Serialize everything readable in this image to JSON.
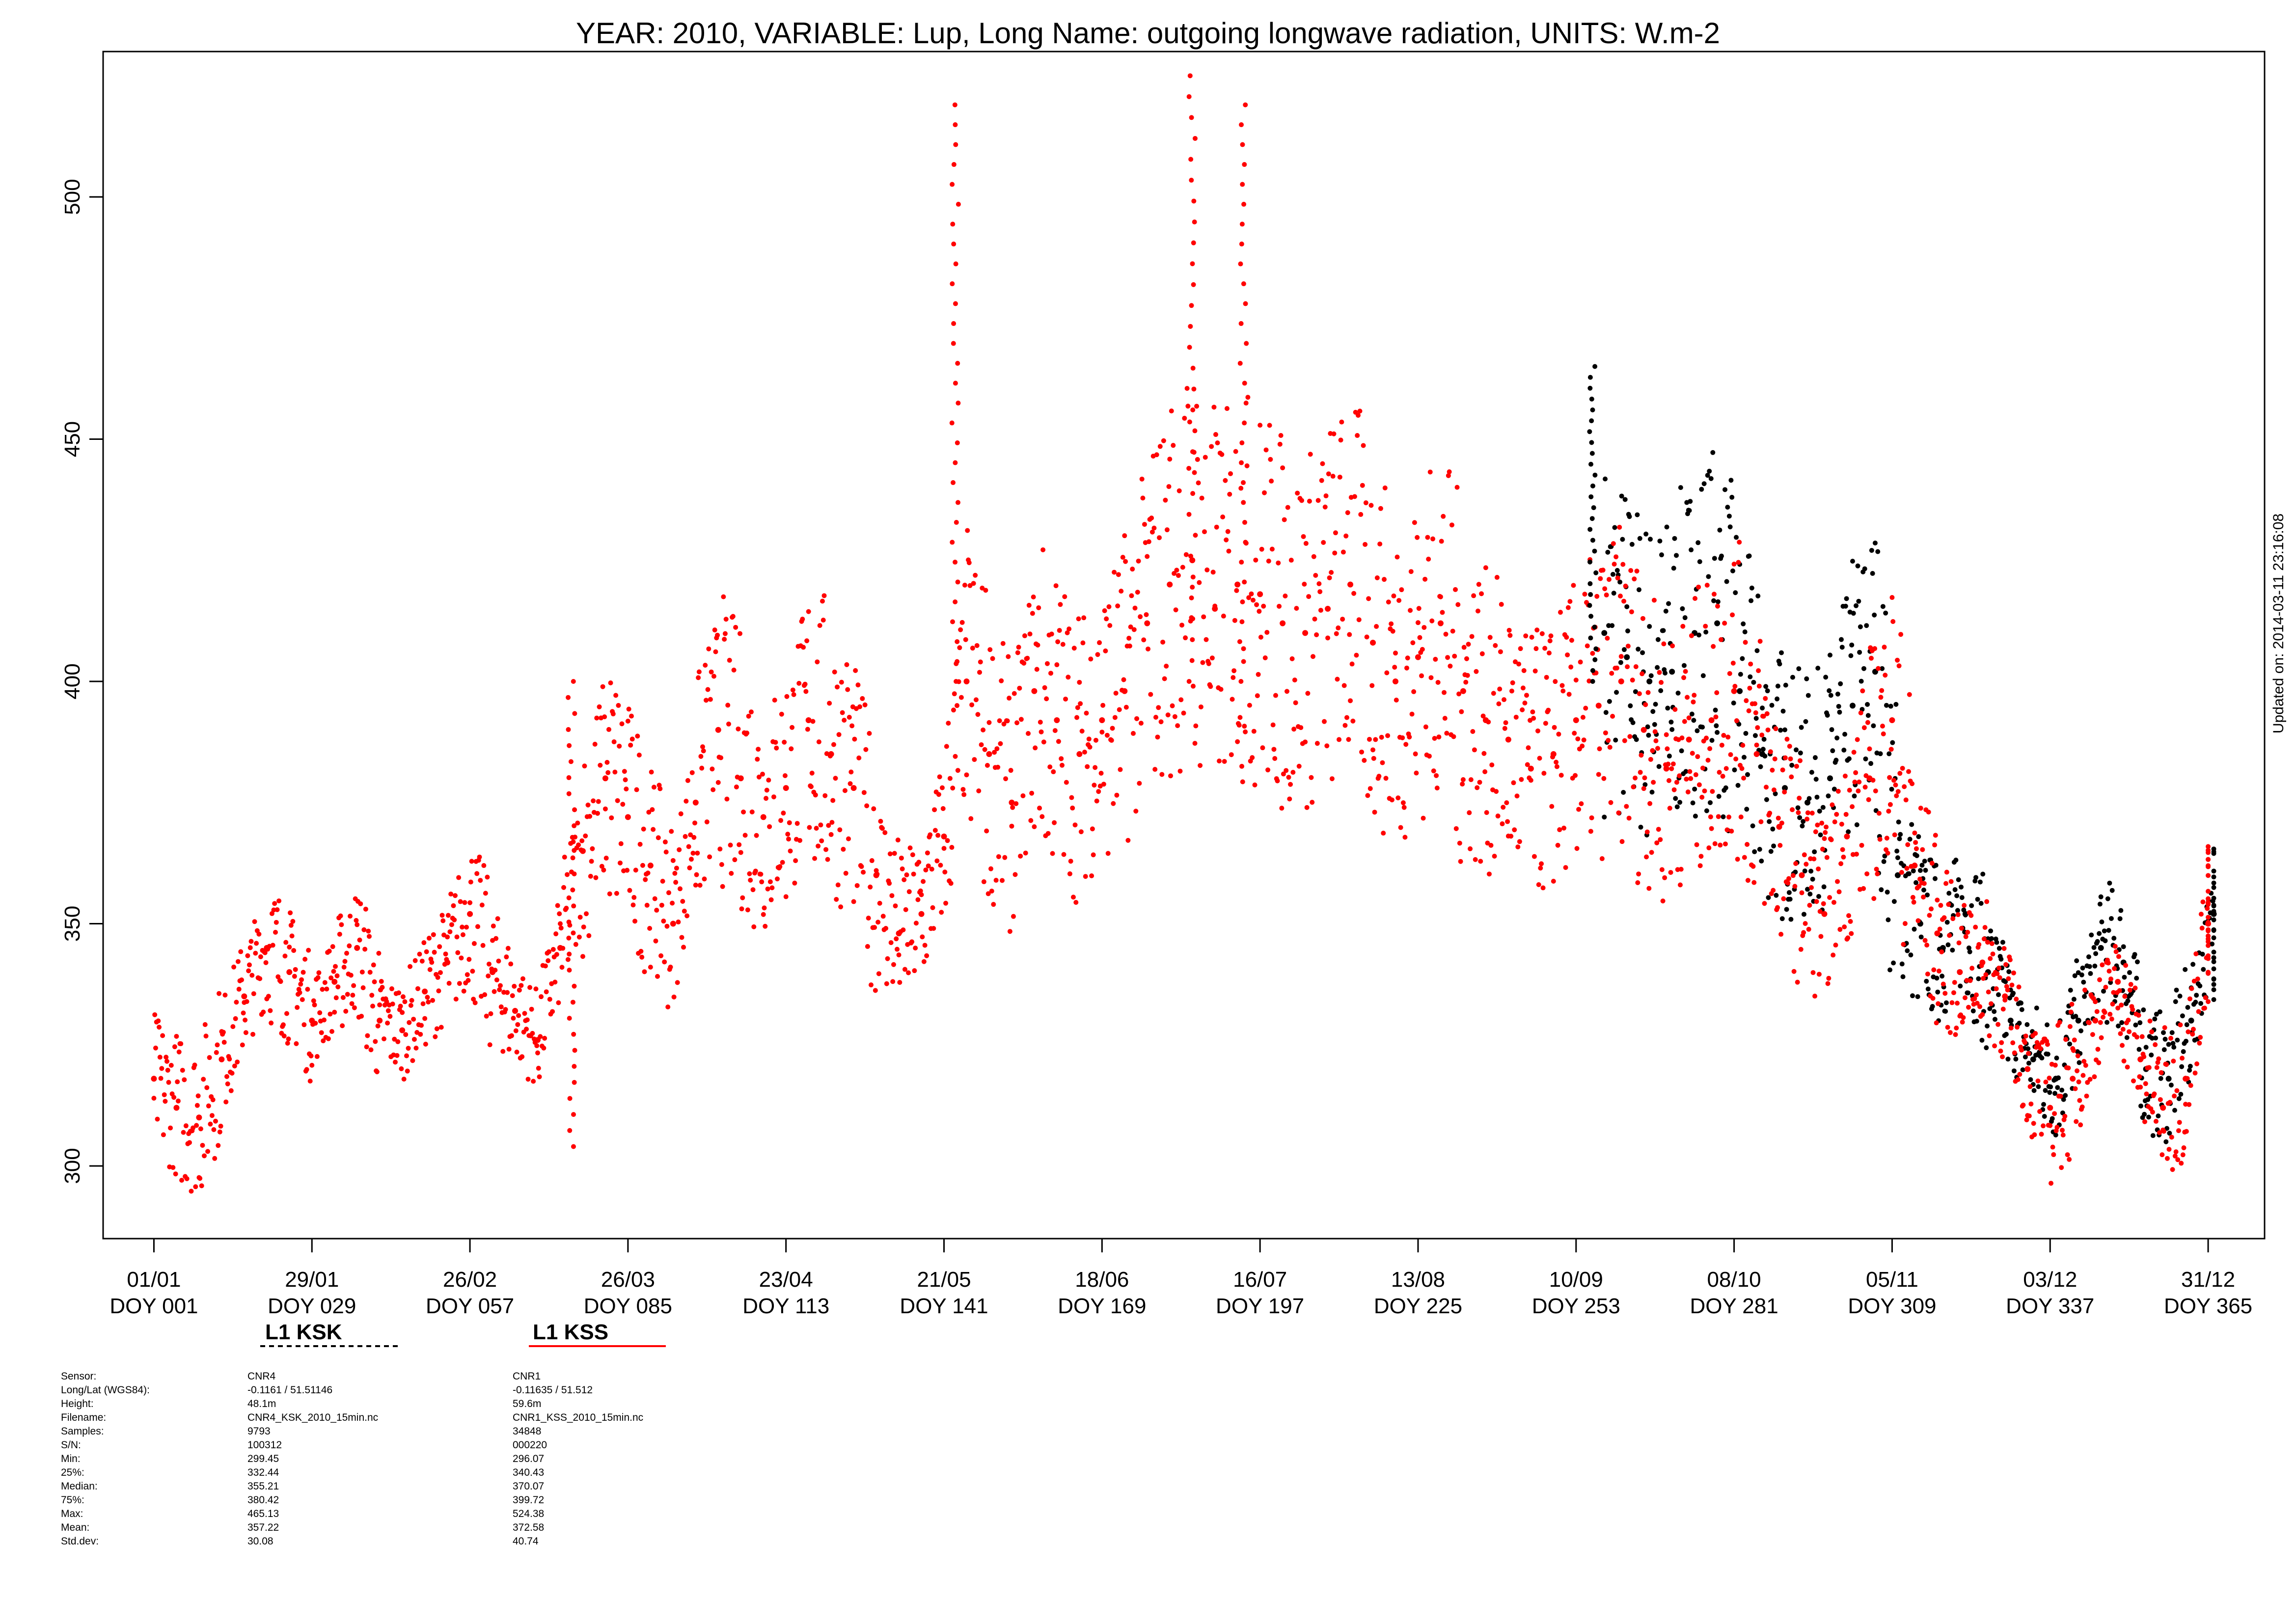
{
  "chart_data": {
    "type": "scatter",
    "title": "YEAR: 2010, VARIABLE: Lup, Long Name: outgoing  longwave  radiation, UNITS: W.m-2",
    "xlabel": "",
    "ylabel": "",
    "xlim": [
      -8,
      375
    ],
    "ylim": [
      285,
      530
    ],
    "grid": false,
    "x_ticks": [
      {
        "doy": 1,
        "date": "01/01",
        "label": "DOY 001"
      },
      {
        "doy": 29,
        "date": "29/01",
        "label": "DOY 029"
      },
      {
        "doy": 57,
        "date": "26/02",
        "label": "DOY 057"
      },
      {
        "doy": 85,
        "date": "26/03",
        "label": "DOY 085"
      },
      {
        "doy": 113,
        "date": "23/04",
        "label": "DOY 113"
      },
      {
        "doy": 141,
        "date": "21/05",
        "label": "DOY 141"
      },
      {
        "doy": 169,
        "date": "18/06",
        "label": "DOY 169"
      },
      {
        "doy": 197,
        "date": "16/07",
        "label": "DOY 197"
      },
      {
        "doy": 225,
        "date": "13/08",
        "label": "DOY 225"
      },
      {
        "doy": 253,
        "date": "10/09",
        "label": "DOY 253"
      },
      {
        "doy": 281,
        "date": "08/10",
        "label": "DOY 281"
      },
      {
        "doy": 309,
        "date": "05/11",
        "label": "DOY 309"
      },
      {
        "doy": 337,
        "date": "03/12",
        "label": "DOY 337"
      },
      {
        "doy": 365,
        "date": "31/12",
        "label": "DOY 365"
      }
    ],
    "y_ticks": [
      300,
      350,
      400,
      450,
      500
    ],
    "legend": {
      "placement": "bottom-left, below axis",
      "entries": [
        {
          "label": "L1 KSK",
          "color": "#000000",
          "line": "dashed"
        },
        {
          "label": "L1 KSS",
          "color": "#ff0000",
          "line": "solid"
        }
      ]
    },
    "series": [
      {
        "name": "L1 KSK",
        "color": "#000000",
        "x": [
          258,
          262,
          266,
          270,
          274,
          278,
          282,
          286,
          290,
          294,
          298,
          302,
          306,
          310,
          314,
          318,
          322,
          326,
          330,
          334,
          338,
          342,
          346,
          350,
          354,
          358,
          362,
          366
        ],
        "y": [
          410,
          405,
          400,
          402,
          410,
          412,
          398,
          385,
          378,
          375,
          380,
          395,
          402,
          360,
          350,
          345,
          352,
          340,
          330,
          322,
          318,
          330,
          345,
          342,
          320,
          318,
          330,
          352
        ]
      },
      {
        "name": "L1 KSS",
        "color": "#ff0000",
        "x": [
          1,
          5,
          9,
          13,
          17,
          21,
          25,
          29,
          33,
          37,
          41,
          45,
          49,
          53,
          57,
          61,
          65,
          69,
          73,
          77,
          81,
          85,
          89,
          93,
          97,
          101,
          105,
          109,
          113,
          117,
          121,
          125,
          129,
          133,
          137,
          141,
          145,
          149,
          153,
          157,
          161,
          165,
          169,
          173,
          177,
          181,
          185,
          189,
          193,
          197,
          201,
          205,
          209,
          213,
          217,
          221,
          225,
          229,
          233,
          237,
          241,
          245,
          249,
          253,
          257,
          261,
          265,
          269,
          273,
          277,
          281,
          285,
          289,
          293,
          297,
          301,
          305,
          309,
          313,
          317,
          321,
          325,
          329,
          333,
          337,
          341,
          345,
          349,
          353,
          357,
          361,
          365
        ],
        "y": [
          318,
          312,
          310,
          322,
          335,
          345,
          340,
          330,
          338,
          345,
          330,
          328,
          336,
          342,
          352,
          340,
          332,
          326,
          345,
          365,
          380,
          372,
          362,
          350,
          375,
          390,
          380,
          372,
          378,
          392,
          385,
          378,
          360,
          348,
          352,
          368,
          400,
          385,
          375,
          398,
          392,
          385,
          392,
          398,
          412,
          420,
          425,
          415,
          420,
          418,
          412,
          410,
          415,
          420,
          408,
          400,
          405,
          412,
          398,
          392,
          388,
          382,
          385,
          392,
          395,
          400,
          390,
          382,
          388,
          392,
          398,
          385,
          370,
          360,
          352,
          368,
          380,
          392,
          362,
          348,
          340,
          342,
          335,
          320,
          312,
          318,
          330,
          338,
          322,
          312,
          318,
          350
        ]
      }
    ],
    "peaks": [
      {
        "doy": 143,
        "value": 519
      },
      {
        "doy": 185,
        "value": 525
      },
      {
        "doy": 194,
        "value": 519
      },
      {
        "doy": 256,
        "value": 465
      },
      {
        "doy": 75,
        "value": 304
      }
    ]
  },
  "stamp": "Updated on: 2014-03-11 23:16:08",
  "stats": {
    "labels": [
      "Sensor:",
      "Long/Lat (WGS84):",
      "Height:",
      "Filename:",
      "Samples:",
      "S/N:",
      "Min:",
      "25%:",
      "Median:",
      "75%:",
      "Max:",
      "Mean:",
      "Std.dev:"
    ],
    "ksk": [
      "CNR4",
      "-0.1161 / 51.51146",
      "48.1m",
      "CNR4_KSK_2010_15min.nc",
      "9793",
      "100312",
      "299.45",
      "332.44",
      "355.21",
      "380.42",
      "465.13",
      "357.22",
      "30.08"
    ],
    "kss": [
      "CNR1",
      "-0.11635 / 51.512",
      "59.6m",
      "CNR1_KSS_2010_15min.nc",
      "34848",
      "000220",
      "296.07",
      "340.43",
      "370.07",
      "399.72",
      "524.38",
      "372.58",
      "40.74"
    ]
  }
}
